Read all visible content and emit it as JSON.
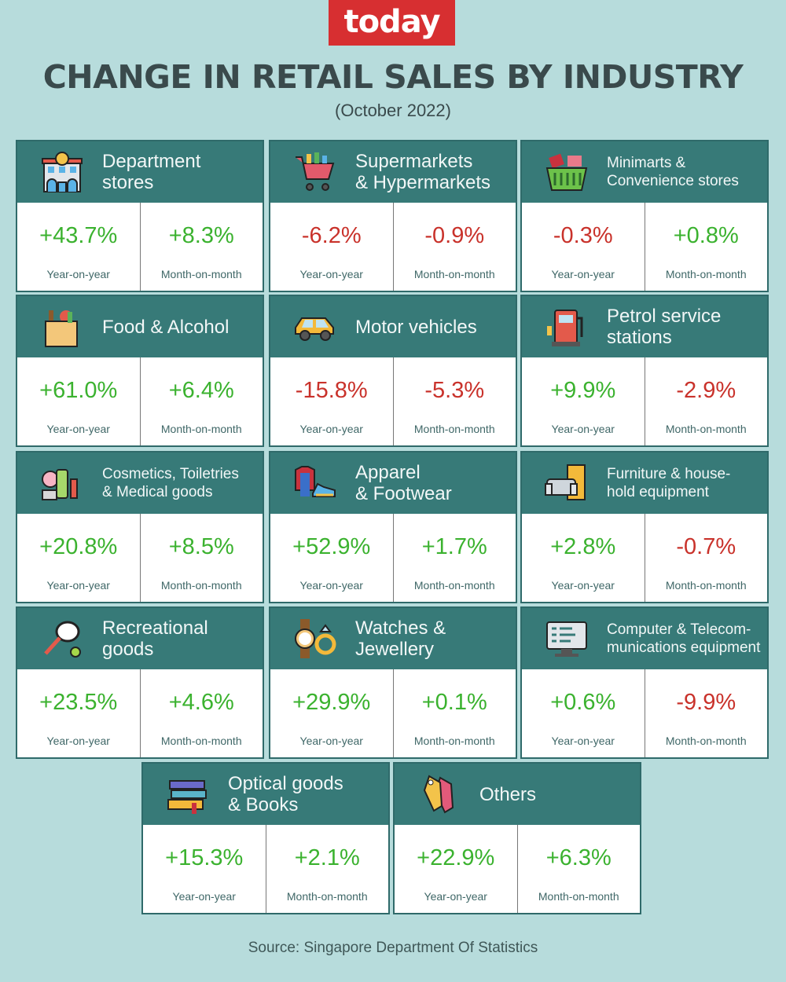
{
  "brand": "today",
  "title": "CHANGE IN RETAIL SALES BY INDUSTRY",
  "subtitle": "(October 2022)",
  "source": "Source: Singapore Department Of Statistics",
  "colors": {
    "positive": "#3bb22f",
    "negative": "#c9322b",
    "header": "#377a78",
    "background": "#b7dcdc",
    "brand": "#d72f31"
  },
  "yoy_label": "Year-on-year",
  "mom_label": "Month-on-month",
  "industries": [
    {
      "name_line1": "Department",
      "name_line2": "stores",
      "icon": "department-store-icon",
      "yoy": "+43.7%",
      "mom": "+8.3%",
      "yoy_sign": "pos",
      "mom_sign": "pos"
    },
    {
      "name_line1": "Supermarkets",
      "name_line2": "& Hypermarkets",
      "icon": "shopping-cart-icon",
      "yoy": "-6.2%",
      "mom": "-0.9%",
      "yoy_sign": "neg",
      "mom_sign": "neg"
    },
    {
      "name_line1": "Minimarts &",
      "name_line2": "Convenience stores",
      "icon": "basket-icon",
      "yoy": "-0.3%",
      "mom": "+0.8%",
      "yoy_sign": "neg",
      "mom_sign": "pos"
    },
    {
      "name_line1": "Food & Alcohol",
      "name_line2": "",
      "icon": "grocery-bag-icon",
      "yoy": "+61.0%",
      "mom": "+6.4%",
      "yoy_sign": "pos",
      "mom_sign": "pos"
    },
    {
      "name_line1": "Motor vehicles",
      "name_line2": "",
      "icon": "car-icon",
      "yoy": "-15.8%",
      "mom": "-5.3%",
      "yoy_sign": "neg",
      "mom_sign": "neg"
    },
    {
      "name_line1": "Petrol service",
      "name_line2": "stations",
      "icon": "fuel-pump-icon",
      "yoy": "+9.9%",
      "mom": "-2.9%",
      "yoy_sign": "pos",
      "mom_sign": "neg"
    },
    {
      "name_line1": "Cosmetics, Toiletries",
      "name_line2": "& Medical goods",
      "icon": "cosmetics-icon",
      "yoy": "+20.8%",
      "mom": "+8.5%",
      "yoy_sign": "pos",
      "mom_sign": "pos"
    },
    {
      "name_line1": "Apparel",
      "name_line2": "& Footwear",
      "icon": "clothes-shoe-icon",
      "yoy": "+52.9%",
      "mom": "+1.7%",
      "yoy_sign": "pos",
      "mom_sign": "pos"
    },
    {
      "name_line1": "Furniture & house-",
      "name_line2": "hold equipment",
      "icon": "sofa-icon",
      "yoy": "+2.8%",
      "mom": "-0.7%",
      "yoy_sign": "pos",
      "mom_sign": "neg"
    },
    {
      "name_line1": "Recreational",
      "name_line2": "goods",
      "icon": "tennis-racket-icon",
      "yoy": "+23.5%",
      "mom": "+4.6%",
      "yoy_sign": "pos",
      "mom_sign": "pos"
    },
    {
      "name_line1": "Watches &",
      "name_line2": "Jewellery",
      "icon": "watch-ring-icon",
      "yoy": "+29.9%",
      "mom": "+0.1%",
      "yoy_sign": "pos",
      "mom_sign": "pos"
    },
    {
      "name_line1": "Computer & Telecom-",
      "name_line2": "munications equipment",
      "icon": "computer-monitor-icon",
      "yoy": "+0.6%",
      "mom": "-9.9%",
      "yoy_sign": "pos",
      "mom_sign": "neg"
    },
    {
      "name_line1": "Optical goods",
      "name_line2": "& Books",
      "icon": "books-icon",
      "yoy": "+15.3%",
      "mom": "+2.1%",
      "yoy_sign": "pos",
      "mom_sign": "pos"
    },
    {
      "name_line1": "Others",
      "name_line2": "",
      "icon": "price-tag-icon",
      "yoy": "+22.9%",
      "mom": "+6.3%",
      "yoy_sign": "pos",
      "mom_sign": "pos"
    }
  ]
}
